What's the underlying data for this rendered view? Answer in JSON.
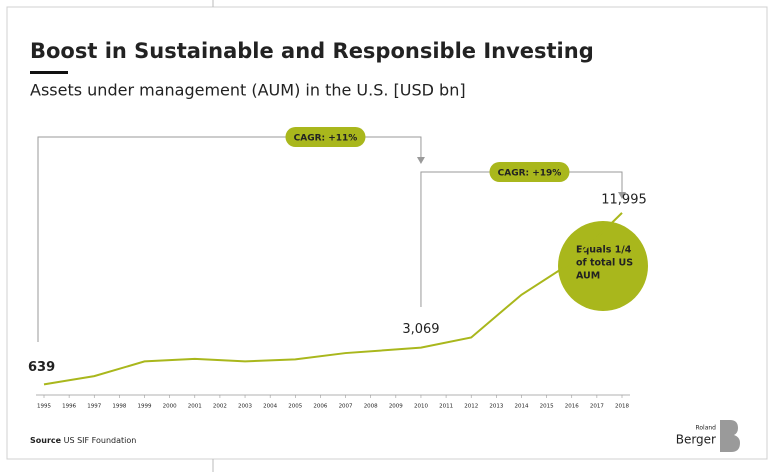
{
  "chart_data": {
    "type": "line",
    "title": "Boost in Sustainable and Responsible Investing",
    "subtitle": "Assets under management (AUM) in the U.S. [USD bn]",
    "x": [
      1995,
      1997,
      1999,
      2001,
      2003,
      2005,
      2007,
      2010,
      2012,
      2014,
      2016,
      2018
    ],
    "values": [
      639,
      1185,
      2159,
      2323,
      2164,
      2290,
      2711,
      3069,
      3744,
      6572,
      8723,
      11995
    ],
    "value_labels": [
      "639",
      null,
      null,
      null,
      null,
      null,
      null,
      "3,069",
      null,
      null,
      null,
      "11,995"
    ],
    "color": "#a9b71c",
    "xlim": [
      1995,
      2018
    ],
    "xticks": [
      1995,
      1996,
      1997,
      1998,
      1999,
      2000,
      2001,
      2002,
      2003,
      2004,
      2005,
      2006,
      2007,
      2008,
      2009,
      2010,
      2011,
      2012,
      2013,
      2014,
      2015,
      2016,
      2017,
      2018
    ],
    "ylim": [
      0,
      20000
    ],
    "annotations": [
      "CAGR: +11%",
      "CAGR: +19%"
    ],
    "callout": [
      "Equals 1/4",
      "of total US",
      "AUM"
    ],
    "source_label": "Source",
    "source": "US SIF Foundation",
    "brand": [
      "Roland",
      "Berger"
    ]
  }
}
